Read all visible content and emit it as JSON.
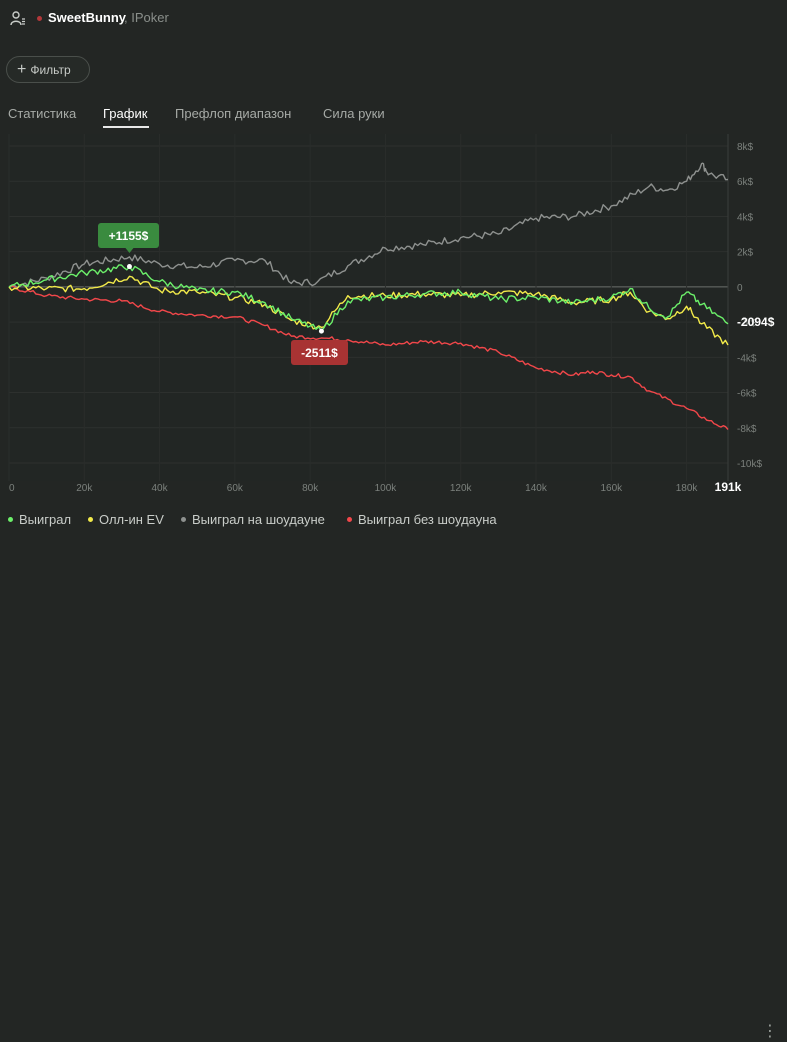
{
  "header": {
    "username": "SweetBunny",
    "platform": ", IPoker"
  },
  "filter": {
    "label": "Фильтр"
  },
  "tabs": [
    {
      "label": "Статистика",
      "active": false
    },
    {
      "label": "График",
      "active": true
    },
    {
      "label": "Префлоп диапазон",
      "active": false
    },
    {
      "label": "Сила руки",
      "active": false
    }
  ],
  "colors": {
    "win": "#6cf06a",
    "ev": "#f2ea4a",
    "showdown": "#8e918f",
    "no_showdown": "#f2474a",
    "peak_badge": "#3a8b3f",
    "low_badge": "#a83333"
  },
  "chart_data": {
    "type": "line",
    "x_ticks": [
      "0",
      "20k",
      "40k",
      "60k",
      "80k",
      "100k",
      "120k",
      "140k",
      "160k",
      "180k"
    ],
    "x_end_label": "191k",
    "xlim": [
      0,
      191000
    ],
    "y_ticks": [
      "8k$",
      "6k$",
      "4k$",
      "2k$",
      "0",
      "-2k$",
      "-4k$",
      "-6k$",
      "-8k$",
      "-10k$"
    ],
    "ylim": [
      -10000,
      8000
    ],
    "grid": true,
    "legend_position": "bottom-left",
    "peak_label": "+1155$",
    "peak_point": [
      32000,
      1155
    ],
    "low_label": "-2511$",
    "low_point": [
      83000,
      -2511
    ],
    "end_label": "-2094$",
    "series": [
      {
        "name": "Выиграл на шоудауне",
        "color": "#8e918f",
        "points": [
          [
            0,
            0
          ],
          [
            10000,
            500
          ],
          [
            20000,
            1300
          ],
          [
            32000,
            1700
          ],
          [
            40000,
            1300
          ],
          [
            50000,
            1100
          ],
          [
            60000,
            1500
          ],
          [
            68000,
            1500
          ],
          [
            75000,
            200
          ],
          [
            82000,
            300
          ],
          [
            90000,
            1200
          ],
          [
            100000,
            2200
          ],
          [
            110000,
            2400
          ],
          [
            120000,
            2800
          ],
          [
            130000,
            3000
          ],
          [
            140000,
            3900
          ],
          [
            150000,
            4000
          ],
          [
            160000,
            4600
          ],
          [
            170000,
            5700
          ],
          [
            175000,
            5500
          ],
          [
            180000,
            6000
          ],
          [
            184000,
            7000
          ],
          [
            186000,
            6400
          ],
          [
            191000,
            6100
          ]
        ]
      },
      {
        "name": "Выиграл",
        "color": "#6cf06a",
        "points": [
          [
            0,
            0
          ],
          [
            10000,
            400
          ],
          [
            20000,
            800
          ],
          [
            32000,
            1155
          ],
          [
            40000,
            300
          ],
          [
            50000,
            -200
          ],
          [
            60000,
            -300
          ],
          [
            68000,
            -900
          ],
          [
            75000,
            -1800
          ],
          [
            83000,
            -2511
          ],
          [
            90000,
            -800
          ],
          [
            100000,
            -600
          ],
          [
            110000,
            -400
          ],
          [
            120000,
            -300
          ],
          [
            130000,
            -700
          ],
          [
            140000,
            -600
          ],
          [
            150000,
            -900
          ],
          [
            160000,
            -600
          ],
          [
            165000,
            -100
          ],
          [
            170000,
            -1200
          ],
          [
            175000,
            -1700
          ],
          [
            180000,
            -300
          ],
          [
            184000,
            -1000
          ],
          [
            191000,
            -2094
          ]
        ]
      },
      {
        "name": "Олл-ин EV",
        "color": "#f2ea4a",
        "points": [
          [
            0,
            0
          ],
          [
            10000,
            -100
          ],
          [
            20000,
            -100
          ],
          [
            32000,
            600
          ],
          [
            40000,
            -200
          ],
          [
            50000,
            -300
          ],
          [
            60000,
            -600
          ],
          [
            68000,
            -1000
          ],
          [
            75000,
            -1900
          ],
          [
            83000,
            -2300
          ],
          [
            90000,
            -500
          ],
          [
            100000,
            -500
          ],
          [
            110000,
            -400
          ],
          [
            120000,
            -500
          ],
          [
            130000,
            -300
          ],
          [
            140000,
            -400
          ],
          [
            150000,
            -900
          ],
          [
            160000,
            -700
          ],
          [
            165000,
            -300
          ],
          [
            170000,
            -1400
          ],
          [
            175000,
            -1800
          ],
          [
            180000,
            -1100
          ],
          [
            184000,
            -2100
          ],
          [
            191000,
            -3300
          ]
        ]
      },
      {
        "name": "Выиграл без шоудауна",
        "color": "#f2474a",
        "points": [
          [
            0,
            0
          ],
          [
            10000,
            -500
          ],
          [
            20000,
            -700
          ],
          [
            30000,
            -800
          ],
          [
            40000,
            -1400
          ],
          [
            50000,
            -1600
          ],
          [
            60000,
            -1700
          ],
          [
            68000,
            -2200
          ],
          [
            75000,
            -2800
          ],
          [
            83000,
            -2900
          ],
          [
            90000,
            -3000
          ],
          [
            100000,
            -3300
          ],
          [
            110000,
            -3100
          ],
          [
            120000,
            -3200
          ],
          [
            130000,
            -3700
          ],
          [
            140000,
            -4600
          ],
          [
            150000,
            -5000
          ],
          [
            155000,
            -4800
          ],
          [
            160000,
            -5000
          ],
          [
            165000,
            -5100
          ],
          [
            170000,
            -5900
          ],
          [
            180000,
            -6900
          ],
          [
            186000,
            -7600
          ],
          [
            191000,
            -8100
          ]
        ]
      }
    ]
  }
}
